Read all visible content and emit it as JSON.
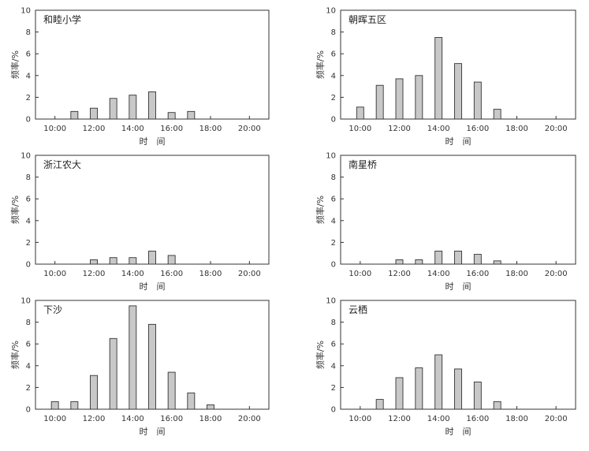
{
  "chart_data": [
    {
      "type": "bar",
      "title": "和睦小学",
      "xlabel": "时　间",
      "ylabel": "频率/%",
      "xlim": [
        9,
        21
      ],
      "ylim": [
        0,
        10
      ],
      "yticks": [
        0,
        2,
        4,
        6,
        8,
        10
      ],
      "xticks": [
        10,
        12,
        14,
        16,
        18,
        20
      ],
      "xtick_labels": [
        "10:00",
        "12:00",
        "14:00",
        "16:00",
        "18:00",
        "20:00"
      ],
      "grid": false,
      "x": [
        11,
        12,
        13,
        14,
        15,
        16,
        17
      ],
      "values": [
        0.7,
        1.0,
        1.9,
        2.2,
        2.5,
        0.6,
        0.7
      ]
    },
    {
      "type": "bar",
      "title": "朝晖五区",
      "xlabel": "时　间",
      "ylabel": "频率/%",
      "xlim": [
        9,
        21
      ],
      "ylim": [
        0,
        10
      ],
      "yticks": [
        0,
        2,
        4,
        6,
        8,
        10
      ],
      "xticks": [
        10,
        12,
        14,
        16,
        18,
        20
      ],
      "xtick_labels": [
        "10:00",
        "12:00",
        "14:00",
        "16:00",
        "18:00",
        "20:00"
      ],
      "grid": false,
      "x": [
        10,
        11,
        12,
        13,
        14,
        15,
        16,
        17
      ],
      "values": [
        1.1,
        3.1,
        3.7,
        4.0,
        7.5,
        5.1,
        3.4,
        0.9
      ]
    },
    {
      "type": "bar",
      "title": "浙江农大",
      "xlabel": "时　间",
      "ylabel": "频率/%",
      "xlim": [
        9,
        21
      ],
      "ylim": [
        0,
        10
      ],
      "yticks": [
        0,
        2,
        4,
        6,
        8,
        10
      ],
      "xticks": [
        10,
        12,
        14,
        16,
        18,
        20
      ],
      "xtick_labels": [
        "10:00",
        "12:00",
        "14:00",
        "16:00",
        "18:00",
        "20:00"
      ],
      "grid": false,
      "x": [
        12,
        13,
        14,
        15,
        16
      ],
      "values": [
        0.4,
        0.6,
        0.6,
        1.2,
        0.8
      ]
    },
    {
      "type": "bar",
      "title": "南星桥",
      "xlabel": "时　间",
      "ylabel": "频率/%",
      "xlim": [
        9,
        21
      ],
      "ylim": [
        0,
        10
      ],
      "yticks": [
        0,
        2,
        4,
        6,
        8,
        10
      ],
      "xticks": [
        10,
        12,
        14,
        16,
        18,
        20
      ],
      "xtick_labels": [
        "10:00",
        "12:00",
        "14:00",
        "16:00",
        "18:00",
        "20:00"
      ],
      "grid": false,
      "x": [
        12,
        13,
        14,
        15,
        16,
        17
      ],
      "values": [
        0.4,
        0.4,
        1.2,
        1.2,
        0.9,
        0.3
      ]
    },
    {
      "type": "bar",
      "title": "下沙",
      "xlabel": "时　间",
      "ylabel": "频率/%",
      "xlim": [
        9,
        21
      ],
      "ylim": [
        0,
        10
      ],
      "yticks": [
        0,
        2,
        4,
        6,
        8,
        10
      ],
      "xticks": [
        10,
        12,
        14,
        16,
        18,
        20
      ],
      "xtick_labels": [
        "10:00",
        "12:00",
        "14:00",
        "16:00",
        "18:00",
        "20:00"
      ],
      "grid": false,
      "x": [
        10,
        11,
        12,
        13,
        14,
        15,
        16,
        17,
        18
      ],
      "values": [
        0.7,
        0.7,
        3.1,
        6.5,
        9.5,
        7.8,
        3.4,
        1.5,
        0.4
      ]
    },
    {
      "type": "bar",
      "title": "云栖",
      "xlabel": "时　间",
      "ylabel": "频率/%",
      "xlim": [
        9,
        21
      ],
      "ylim": [
        0,
        10
      ],
      "yticks": [
        0,
        2,
        4,
        6,
        8,
        10
      ],
      "xticks": [
        10,
        12,
        14,
        16,
        18,
        20
      ],
      "xtick_labels": [
        "10:00",
        "12:00",
        "14:00",
        "16:00",
        "18:00",
        "20:00"
      ],
      "grid": false,
      "x": [
        11,
        12,
        13,
        14,
        15,
        16,
        17
      ],
      "values": [
        0.9,
        2.9,
        3.8,
        5.0,
        3.7,
        2.5,
        0.7
      ]
    }
  ]
}
